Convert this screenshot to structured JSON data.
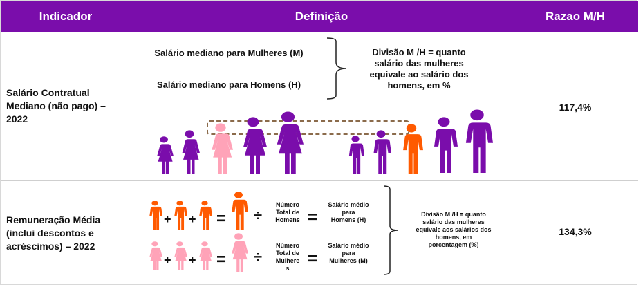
{
  "header": {
    "col1": "Indicador",
    "col2": "Definição",
    "col3": "Razao M/H"
  },
  "colors": {
    "header": "#7a0dab",
    "purple": "#7a0dab",
    "pink": "#ffa3b8",
    "orange": "#ff5a00",
    "dashed_box": "#8b6b4b"
  },
  "rows": [
    {
      "indicator": [
        "Salário Contratual",
        "Mediano (não pago) –",
        "2022"
      ],
      "def": {
        "line_m": "Salário mediano para Mulheres (M)",
        "line_h": "Salário mediano para Homens (H)",
        "explanation": [
          "Divisão M /H = quanto",
          "salário das mulheres",
          "equivale ao salário dos",
          "homens, em %"
        ]
      },
      "value": "117,4%"
    },
    {
      "indicator": [
        "Remuneração Média",
        "(inclui descontos e",
        "acréscimos) – 2022"
      ],
      "def": {
        "plus": "+",
        "equals": "=",
        "divide": "÷",
        "total_men": [
          "Número",
          "Total de",
          "Homens"
        ],
        "total_women": [
          "Número",
          "Total de",
          "Mulhere",
          "s"
        ],
        "avg_men": [
          "Salário médio",
          "para",
          "Homens (H)"
        ],
        "avg_women": [
          "Salário médio",
          "para",
          "Mulheres (M)"
        ],
        "explanation": [
          "Divisão M /H = quanto",
          "salário das mulheres",
          "equivale aos salários dos",
          "homens, em",
          "porcentagem (%)"
        ]
      },
      "value": "134,3%"
    }
  ]
}
